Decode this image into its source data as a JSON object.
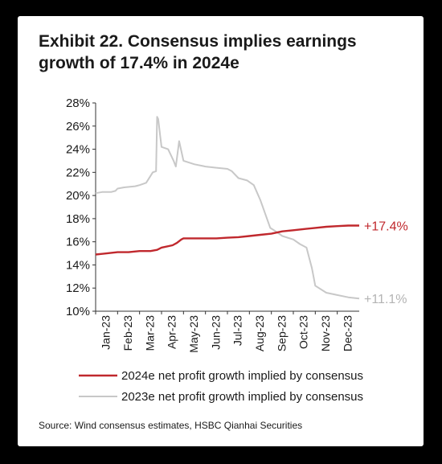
{
  "title_line1": "Exhibit 22. Consensus implies earnings",
  "title_line2": "growth of 17.4% in 2024e",
  "source": "Source: Wind consensus estimates, HSBC Qianhai Securities",
  "chart_data": {
    "type": "line",
    "ylim": [
      10,
      28
    ],
    "y_ticks": [
      "28%",
      "26%",
      "24%",
      "22%",
      "20%",
      "18%",
      "16%",
      "14%",
      "12%",
      "10%"
    ],
    "x_ticks": [
      "Jan-23",
      "Feb-23",
      "Mar-23",
      "Apr-23",
      "May-23",
      "Jun-23",
      "Jul-23",
      "Aug-23",
      "Sep-23",
      "Oct-23",
      "Nov-23",
      "Dec-23"
    ],
    "x_range": [
      0,
      12
    ],
    "grid": false,
    "legend_placement": "bottom",
    "series": [
      {
        "name": "2024e net profit growth implied by consensus",
        "color": "#c0282d",
        "end_label": "+17.4%",
        "x": [
          0,
          0.5,
          1,
          1.5,
          2,
          2.5,
          2.8,
          3.0,
          3.5,
          3.7,
          3.9,
          4,
          4.5,
          5,
          5.5,
          6,
          6.5,
          7,
          7.5,
          8,
          8.5,
          9,
          9.5,
          10,
          10.5,
          11,
          11.5,
          12
        ],
        "y": [
          14.9,
          15.0,
          15.1,
          15.1,
          15.2,
          15.2,
          15.3,
          15.5,
          15.7,
          15.9,
          16.2,
          16.3,
          16.3,
          16.3,
          16.3,
          16.35,
          16.4,
          16.5,
          16.6,
          16.7,
          16.9,
          17.0,
          17.1,
          17.2,
          17.3,
          17.35,
          17.4,
          17.4
        ]
      },
      {
        "name": "2023e net profit growth implied by consensus",
        "color": "#c8c8c8",
        "end_label": "+11.1%",
        "x": [
          0,
          0.3,
          0.7,
          0.9,
          1.0,
          1.3,
          1.8,
          2.0,
          2.3,
          2.6,
          2.75,
          2.8,
          2.85,
          2.95,
          3.0,
          3.3,
          3.55,
          3.65,
          3.8,
          4.0,
          4.5,
          5.0,
          5.5,
          6.0,
          6.2,
          6.5,
          6.9,
          7.2,
          7.5,
          7.8,
          7.95,
          8.2,
          8.5,
          9.0,
          9.3,
          9.6,
          9.85,
          10.0,
          10.5,
          11.0,
          11.5,
          12.0
        ],
        "y": [
          20.2,
          20.3,
          20.3,
          20.4,
          20.6,
          20.7,
          20.8,
          20.9,
          21.1,
          22.0,
          22.1,
          26.8,
          26.6,
          25.0,
          24.2,
          24.0,
          23.0,
          22.5,
          24.7,
          23.0,
          22.7,
          22.5,
          22.4,
          22.3,
          22.1,
          21.5,
          21.3,
          20.9,
          19.6,
          18.0,
          17.2,
          16.9,
          16.5,
          16.2,
          15.8,
          15.5,
          13.7,
          12.2,
          11.6,
          11.4,
          11.2,
          11.1
        ]
      }
    ]
  }
}
